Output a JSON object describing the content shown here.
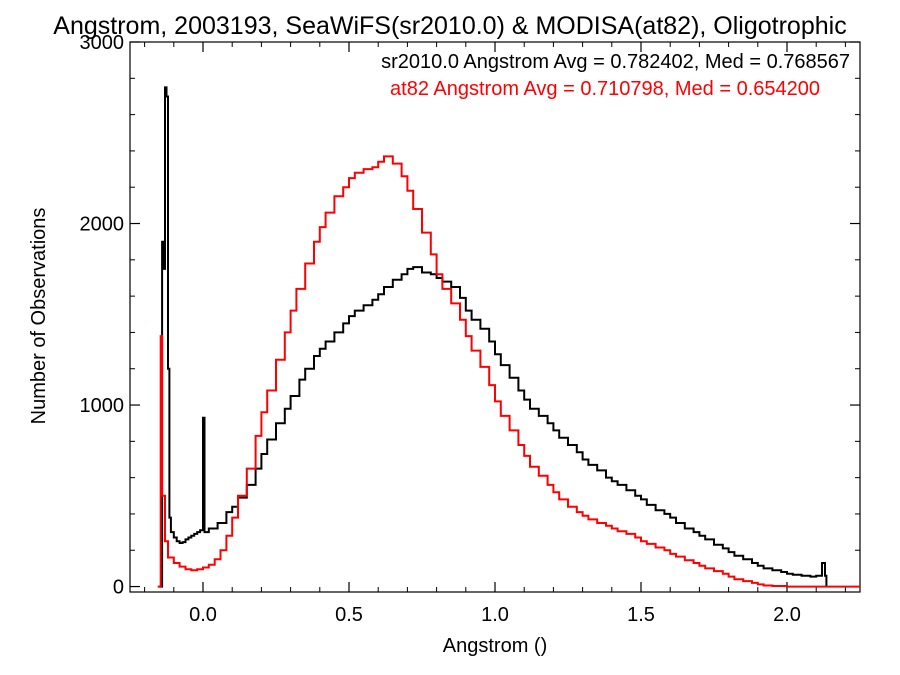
{
  "chart_data": {
    "type": "line",
    "title": "Angstrom, 2003193, SeaWiFS(sr2010.0) & MODISA(at82), Oligotrophic",
    "xlabel": "Angstrom ()",
    "ylabel": "Number of Observations",
    "xlim": [
      -0.25,
      2.25
    ],
    "ylim": [
      -30,
      3000
    ],
    "xticks": [
      0.0,
      0.5,
      1.0,
      1.5,
      2.0
    ],
    "xtick_labels": [
      "0.0",
      "0.5",
      "1.0",
      "1.5",
      "2.0"
    ],
    "yticks": [
      0,
      1000,
      2000,
      3000
    ],
    "ytick_labels": [
      "0",
      "1000",
      "2000",
      "3000"
    ],
    "grid": false,
    "step": true,
    "annotations": [
      {
        "text": "sr2010.0 Angstrom Avg = 0.782402, Med = 0.768567",
        "color": "#000000"
      },
      {
        "text": "at82 Angstrom Avg = 0.710798, Med = 0.654200",
        "color": "#ff0000"
      }
    ],
    "series": [
      {
        "color": "#000000",
        "points": [
          [
            -0.15,
            0
          ],
          [
            -0.145,
            0
          ],
          [
            -0.14,
            1900
          ],
          [
            -0.135,
            1750
          ],
          [
            -0.13,
            2750
          ],
          [
            -0.125,
            2700
          ],
          [
            -0.12,
            1200
          ],
          [
            -0.115,
            380
          ],
          [
            -0.11,
            300
          ],
          [
            -0.1,
            270
          ],
          [
            -0.09,
            250
          ],
          [
            -0.08,
            240
          ],
          [
            -0.07,
            245
          ],
          [
            -0.06,
            260
          ],
          [
            -0.05,
            270
          ],
          [
            -0.04,
            280
          ],
          [
            -0.03,
            290
          ],
          [
            -0.02,
            300
          ],
          [
            -0.01,
            310
          ],
          [
            0.0,
            930
          ],
          [
            0.005,
            300
          ],
          [
            0.02,
            320
          ],
          [
            0.05,
            350
          ],
          [
            0.08,
            410
          ],
          [
            0.1,
            440
          ],
          [
            0.12,
            490
          ],
          [
            0.15,
            560
          ],
          [
            0.18,
            650
          ],
          [
            0.2,
            730
          ],
          [
            0.22,
            810
          ],
          [
            0.25,
            900
          ],
          [
            0.28,
            980
          ],
          [
            0.3,
            1050
          ],
          [
            0.33,
            1140
          ],
          [
            0.35,
            1200
          ],
          [
            0.38,
            1270
          ],
          [
            0.4,
            1310
          ],
          [
            0.42,
            1350
          ],
          [
            0.45,
            1400
          ],
          [
            0.48,
            1450
          ],
          [
            0.5,
            1490
          ],
          [
            0.52,
            1520
          ],
          [
            0.55,
            1550
          ],
          [
            0.58,
            1580
          ],
          [
            0.6,
            1610
          ],
          [
            0.62,
            1650
          ],
          [
            0.65,
            1690
          ],
          [
            0.68,
            1720
          ],
          [
            0.7,
            1750
          ],
          [
            0.72,
            1760
          ],
          [
            0.75,
            1730
          ],
          [
            0.78,
            1720
          ],
          [
            0.8,
            1700
          ],
          [
            0.82,
            1680
          ],
          [
            0.85,
            1650
          ],
          [
            0.88,
            1590
          ],
          [
            0.9,
            1520
          ],
          [
            0.92,
            1470
          ],
          [
            0.95,
            1420
          ],
          [
            0.98,
            1350
          ],
          [
            1.0,
            1280
          ],
          [
            1.02,
            1220
          ],
          [
            1.05,
            1150
          ],
          [
            1.08,
            1080
          ],
          [
            1.1,
            1030
          ],
          [
            1.12,
            980
          ],
          [
            1.15,
            940
          ],
          [
            1.18,
            900
          ],
          [
            1.2,
            860
          ],
          [
            1.22,
            820
          ],
          [
            1.25,
            780
          ],
          [
            1.28,
            740
          ],
          [
            1.3,
            700
          ],
          [
            1.32,
            670
          ],
          [
            1.35,
            640
          ],
          [
            1.38,
            600
          ],
          [
            1.4,
            580
          ],
          [
            1.42,
            560
          ],
          [
            1.45,
            530
          ],
          [
            1.48,
            500
          ],
          [
            1.5,
            480
          ],
          [
            1.52,
            450
          ],
          [
            1.55,
            420
          ],
          [
            1.58,
            400
          ],
          [
            1.6,
            380
          ],
          [
            1.62,
            350
          ],
          [
            1.65,
            320
          ],
          [
            1.68,
            300
          ],
          [
            1.7,
            280
          ],
          [
            1.72,
            260
          ],
          [
            1.75,
            230
          ],
          [
            1.78,
            210
          ],
          [
            1.8,
            190
          ],
          [
            1.82,
            170
          ],
          [
            1.85,
            150
          ],
          [
            1.88,
            130
          ],
          [
            1.9,
            115
          ],
          [
            1.92,
            100
          ],
          [
            1.95,
            90
          ],
          [
            1.98,
            80
          ],
          [
            2.0,
            70
          ],
          [
            2.02,
            65
          ],
          [
            2.05,
            60
          ],
          [
            2.08,
            55
          ],
          [
            2.1,
            60
          ],
          [
            2.12,
            130
          ],
          [
            2.13,
            60
          ],
          [
            2.135,
            0
          ]
        ]
      },
      {
        "color": "#ff0000",
        "points": [
          [
            -0.155,
            0
          ],
          [
            -0.15,
            0
          ],
          [
            -0.145,
            1380
          ],
          [
            -0.14,
            500
          ],
          [
            -0.13,
            250
          ],
          [
            -0.12,
            160
          ],
          [
            -0.1,
            130
          ],
          [
            -0.08,
            110
          ],
          [
            -0.06,
            95
          ],
          [
            -0.04,
            90
          ],
          [
            -0.02,
            95
          ],
          [
            0.0,
            105
          ],
          [
            0.02,
            120
          ],
          [
            0.04,
            150
          ],
          [
            0.06,
            200
          ],
          [
            0.08,
            280
          ],
          [
            0.1,
            380
          ],
          [
            0.12,
            500
          ],
          [
            0.15,
            650
          ],
          [
            0.18,
            830
          ],
          [
            0.2,
            960
          ],
          [
            0.22,
            1080
          ],
          [
            0.25,
            1250
          ],
          [
            0.28,
            1400
          ],
          [
            0.3,
            1520
          ],
          [
            0.32,
            1640
          ],
          [
            0.35,
            1780
          ],
          [
            0.38,
            1900
          ],
          [
            0.4,
            1980
          ],
          [
            0.42,
            2060
          ],
          [
            0.45,
            2150
          ],
          [
            0.48,
            2200
          ],
          [
            0.5,
            2250
          ],
          [
            0.52,
            2280
          ],
          [
            0.55,
            2300
          ],
          [
            0.58,
            2310
          ],
          [
            0.6,
            2340
          ],
          [
            0.62,
            2370
          ],
          [
            0.65,
            2330
          ],
          [
            0.68,
            2260
          ],
          [
            0.7,
            2180
          ],
          [
            0.72,
            2080
          ],
          [
            0.75,
            1950
          ],
          [
            0.78,
            1830
          ],
          [
            0.8,
            1720
          ],
          [
            0.82,
            1640
          ],
          [
            0.85,
            1560
          ],
          [
            0.88,
            1470
          ],
          [
            0.9,
            1380
          ],
          [
            0.92,
            1300
          ],
          [
            0.95,
            1210
          ],
          [
            0.98,
            1110
          ],
          [
            1.0,
            1020
          ],
          [
            1.02,
            940
          ],
          [
            1.05,
            860
          ],
          [
            1.08,
            780
          ],
          [
            1.1,
            720
          ],
          [
            1.12,
            660
          ],
          [
            1.15,
            610
          ],
          [
            1.18,
            560
          ],
          [
            1.2,
            520
          ],
          [
            1.22,
            480
          ],
          [
            1.25,
            440
          ],
          [
            1.28,
            410
          ],
          [
            1.3,
            390
          ],
          [
            1.32,
            370
          ],
          [
            1.35,
            350
          ],
          [
            1.38,
            335
          ],
          [
            1.4,
            320
          ],
          [
            1.42,
            305
          ],
          [
            1.45,
            290
          ],
          [
            1.48,
            270
          ],
          [
            1.5,
            250
          ],
          [
            1.52,
            235
          ],
          [
            1.55,
            215
          ],
          [
            1.58,
            200
          ],
          [
            1.6,
            180
          ],
          [
            1.62,
            165
          ],
          [
            1.65,
            145
          ],
          [
            1.68,
            130
          ],
          [
            1.7,
            115
          ],
          [
            1.72,
            100
          ],
          [
            1.75,
            85
          ],
          [
            1.78,
            70
          ],
          [
            1.8,
            55
          ],
          [
            1.82,
            40
          ],
          [
            1.85,
            30
          ],
          [
            1.88,
            20
          ],
          [
            1.9,
            12
          ],
          [
            1.92,
            6
          ],
          [
            1.95,
            3
          ],
          [
            2.0,
            0
          ],
          [
            2.25,
            0
          ]
        ]
      }
    ]
  }
}
